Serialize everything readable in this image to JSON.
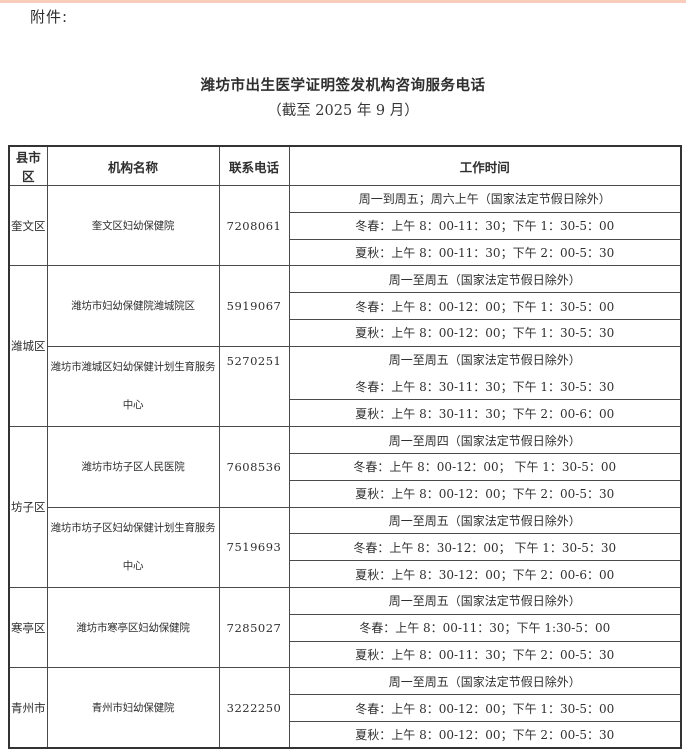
{
  "page": {
    "attachment_label": "附件:",
    "title": "潍坊市出生医学证明签发机构咨询服务电话",
    "subtitle": "（截至 2025 年 9 月）",
    "background_color": "#ffffff",
    "top_accent_color": "#f8cdbb",
    "text_color": "#2f2f2f",
    "border_color": "#4a4a4a"
  },
  "table": {
    "headers": [
      "县市区",
      "机构名称",
      "联系电话",
      "工作时间"
    ],
    "districts": [
      {
        "name": "奎文区",
        "institutions": [
          {
            "name": "奎文区妇幼保健院",
            "phone": "7208061",
            "hours": [
              "周一到周五；周六上午（国家法定节假日除外）",
              "冬春：上午 8：00-11：30；下午 1：30-5：00",
              "夏秋：上午 8：00-11：30；下午 2：00-5：30"
            ]
          }
        ]
      },
      {
        "name": "潍城区",
        "institutions": [
          {
            "name": "潍坊市妇幼保健院潍城院区",
            "phone": "5919067",
            "hours": [
              "周一至周五（国家法定节假日除外）",
              "冬春：上午 8：00-12：00；下午 1：30-5：00",
              "夏秋：上午 8：00-12：00；下午 1：30-5：30"
            ]
          },
          {
            "name": "潍坊市潍城区妇幼保健计划生育服务\n中心",
            "phone": "5270251",
            "phone_top": true,
            "first_divider_hidden": true,
            "hours": [
              "周一至周五（国家法定节假日除外）",
              "冬春：上午 8：30-11：30；下午 1：30-5：30",
              "夏秋：上午 8：30-11：30；下午 2：00-6：00"
            ]
          }
        ]
      },
      {
        "name": "坊子区",
        "institutions": [
          {
            "name": "潍坊市坊子区人民医院",
            "phone": "7608536",
            "hours": [
              "周一至周四（国家法定节假日除外）",
              "冬春：上午 8：00-12：00； 下午 1：30-5：00",
              "夏秋：上午 8：00-12：00；下午 2：00-5：30"
            ]
          },
          {
            "name": "潍坊市坊子区妇幼保健计划生育服务\n中心",
            "phone": "7519693",
            "hours": [
              "周一至周五（国家法定节假日除外）",
              "冬春：上午 8：30-12：00； 下午 1：30-5：30",
              "夏秋：上午 8：30-12：00；下午 2：00-6：00"
            ]
          }
        ]
      },
      {
        "name": "寒亭区",
        "institutions": [
          {
            "name": "潍坊市寒亭区妇幼保健院",
            "phone": "7285027",
            "hours": [
              "周一至周五（国家法定节假日除外）",
              "冬春：上午 8：00-11：30；下午 1:30-5：00",
              "夏秋：上午 8：00-11：30；下午 2：00-5：30"
            ]
          }
        ]
      },
      {
        "name": "青州市",
        "institutions": [
          {
            "name": "青州市妇幼保健院",
            "phone": "3222250",
            "hours": [
              "周一至周五（国家法定节假日除外）",
              "冬春：上午 8：00-12：00；下午 1：30-5：00",
              "夏秋：上午 8：00-12：00；下午 2：00-5：30"
            ]
          }
        ]
      }
    ]
  }
}
